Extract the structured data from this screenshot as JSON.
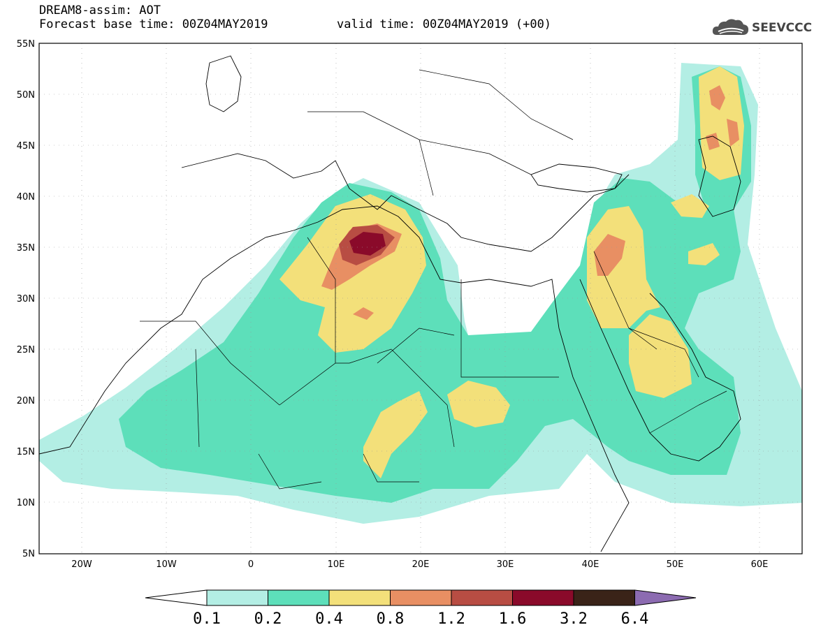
{
  "header": {
    "title": "DREAM8-assim: AOT",
    "forecast": "Forecast base time: 00Z04MAY2019",
    "valid": "valid time: 00Z04MAY2019 (+00)",
    "logo_text": "SEEVCCC",
    "logo_icon": "cloud-icon"
  },
  "axes": {
    "lat_labels": [
      "55N",
      "50N",
      "45N",
      "40N",
      "35N",
      "30N",
      "25N",
      "20N",
      "15N",
      "10N",
      "5N"
    ],
    "lon_labels": [
      "20W",
      "10W",
      "0",
      "10E",
      "20E",
      "30E",
      "40E",
      "50E",
      "60E"
    ]
  },
  "colorbar": {
    "labels": [
      "0.1",
      "0.2",
      "0.4",
      "0.8",
      "1.2",
      "1.6",
      "3.2",
      "6.4"
    ],
    "colors": [
      "#b3eee4",
      "#5ddfba",
      "#f3e07a",
      "#e88f63",
      "#b84d43",
      "#8a0a2a",
      "#3a2318",
      "#8c6bb1"
    ]
  }
}
